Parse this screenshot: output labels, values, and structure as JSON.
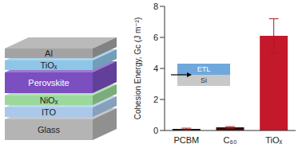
{
  "chart_data": {
    "type": "bar",
    "categories": [
      "PCBM",
      "C₆₀",
      "TiOₓ"
    ],
    "values": [
      0.1,
      0.2,
      6.1
    ],
    "errors": [
      0.05,
      0.05,
      1.1
    ],
    "colors": [
      "#111111",
      "#3d0c0c",
      "#c4182b"
    ],
    "ylabel": "Cohesion Energy, Gc (J m⁻²)",
    "ylim": [
      0,
      8
    ],
    "yticks": [
      0,
      2,
      4,
      6,
      8
    ],
    "annotations": [
      "ETL",
      "Si"
    ]
  },
  "diagram": {
    "layers": [
      "Al",
      "TiOₓ",
      "Perovskite",
      "NiOₓ",
      "ITO",
      "Glass"
    ]
  }
}
